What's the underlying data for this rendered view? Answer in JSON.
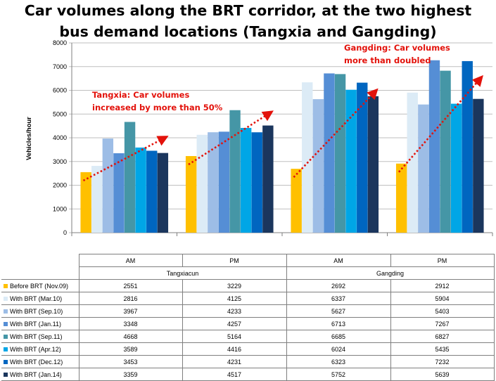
{
  "title": {
    "line1": "Car volumes along the BRT corridor, at the two highest",
    "line2": "bus demand locations (Tangxia and Gangding)"
  },
  "chart_data": {
    "type": "bar",
    "ylabel": "Vehicles/hour",
    "ylim": [
      0,
      8000
    ],
    "yticks": [
      0,
      1000,
      2000,
      3000,
      4000,
      5000,
      6000,
      7000,
      8000
    ],
    "grid": true,
    "groups": [
      "Tangxiacun",
      "Gangding"
    ],
    "categories": [
      "AM",
      "PM",
      "AM",
      "PM"
    ],
    "series": [
      {
        "name": "Before BRT (Nov.09)",
        "color": "#ffc000",
        "values": [
          2551,
          3229,
          2692,
          2912
        ]
      },
      {
        "name": "With BRT (Mar.10)",
        "color": "#dcebf6",
        "values": [
          2816,
          4125,
          6337,
          5904
        ]
      },
      {
        "name": "With BRT (Sep.10)",
        "color": "#9dbde6",
        "values": [
          3967,
          4233,
          5627,
          5403
        ]
      },
      {
        "name": "With BRT (Jan.11)",
        "color": "#558ed5",
        "values": [
          3348,
          4257,
          6713,
          7267
        ]
      },
      {
        "name": "With BRT (Sep.11)",
        "color": "#4596a6",
        "values": [
          4668,
          5164,
          6685,
          6827
        ]
      },
      {
        "name": "With BRT (Apr.12)",
        "color": "#00a6e6",
        "values": [
          3589,
          4416,
          6024,
          5435
        ]
      },
      {
        "name": "With BRT (Dec.12)",
        "color": "#0066c0",
        "values": [
          3453,
          4231,
          6323,
          7232
        ]
      },
      {
        "name": "With BRT (Jan.14)",
        "color": "#1b365d",
        "values": [
          3359,
          4517,
          5752,
          5639
        ]
      }
    ],
    "annotations": [
      {
        "lines": [
          "Tangxia: Car volumes",
          "increased by more than 50%"
        ]
      },
      {
        "lines": [
          "Gangding: Car volumes",
          "more than doubled"
        ]
      }
    ],
    "trend_color": "#e3120b"
  }
}
